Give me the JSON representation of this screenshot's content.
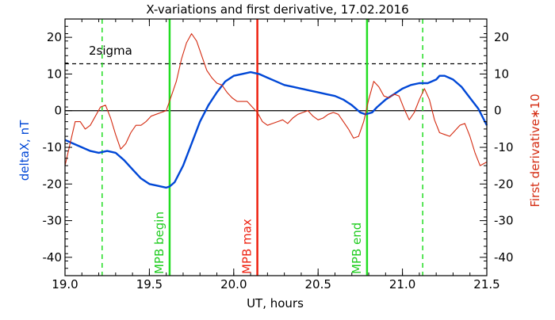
{
  "chart_data": {
    "type": "line",
    "title": "X-variations and first derivative, 17.02.2016",
    "xlabel": "UT, hours",
    "ylabel_left": "deltaX, nT",
    "ylabel_right": "First derivative∗10",
    "xlim": [
      19.0,
      21.5
    ],
    "ylim": [
      -45,
      25
    ],
    "x_ticks": [
      "19.0",
      "19.5",
      "20.0",
      "20.5",
      "21.0",
      "21.5"
    ],
    "y_ticks": [
      "20",
      "10",
      "0",
      "-10",
      "-20",
      "-30",
      "-40"
    ],
    "colors": {
      "deltaX": "#0047d6",
      "derivative": "#d42a10",
      "mpb_edges": "#22dd22",
      "mpb_max": "#ee2211",
      "reference": "#000000"
    },
    "sigma_label": "2sigma",
    "sigma_level": 12.8,
    "zero_line": 0,
    "dashed_green_x": [
      19.22,
      21.12
    ],
    "markers": [
      {
        "label": "MPB begin",
        "x": 19.62,
        "color": "#22dd22"
      },
      {
        "label": "MPB max",
        "x": 20.14,
        "color": "#ee2211"
      },
      {
        "label": "MPB end",
        "x": 20.79,
        "color": "#22dd22"
      }
    ],
    "series": [
      {
        "key": "deltaX",
        "color": "#0047d6",
        "x": [
          19.0,
          19.05,
          19.1,
          19.15,
          19.2,
          19.25,
          19.3,
          19.35,
          19.4,
          19.45,
          19.5,
          19.55,
          19.6,
          19.62,
          19.65,
          19.7,
          19.75,
          19.8,
          19.85,
          19.9,
          19.95,
          20.0,
          20.05,
          20.1,
          20.15,
          20.2,
          20.25,
          20.3,
          20.35,
          20.4,
          20.45,
          20.5,
          20.55,
          20.6,
          20.65,
          20.7,
          20.75,
          20.78,
          20.82,
          20.85,
          20.9,
          20.95,
          21.0,
          21.05,
          21.1,
          21.15,
          21.2,
          21.22,
          21.25,
          21.3,
          21.35,
          21.4,
          21.45,
          21.5
        ],
        "y": [
          -8.0,
          -9.0,
          -10.0,
          -11.0,
          -11.5,
          -11.0,
          -11.5,
          -13.5,
          -16.0,
          -18.5,
          -20.0,
          -20.5,
          -21.0,
          -20.7,
          -19.5,
          -15.0,
          -9.0,
          -3.0,
          1.5,
          5.0,
          8.0,
          9.5,
          10.0,
          10.5,
          10.0,
          9.0,
          8.0,
          7.0,
          6.5,
          6.0,
          5.5,
          5.0,
          4.5,
          4.0,
          3.0,
          1.5,
          -0.5,
          -1.0,
          -0.5,
          1.0,
          3.0,
          4.5,
          6.0,
          7.0,
          7.5,
          7.5,
          8.5,
          9.5,
          9.5,
          8.5,
          6.5,
          3.5,
          0.5,
          -4.0
        ]
      },
      {
        "key": "derivative",
        "color": "#d42a10",
        "x": [
          19.0,
          19.03,
          19.06,
          19.09,
          19.12,
          19.15,
          19.18,
          19.21,
          19.24,
          19.27,
          19.3,
          19.33,
          19.36,
          19.39,
          19.42,
          19.45,
          19.48,
          19.51,
          19.54,
          19.57,
          19.6,
          19.63,
          19.66,
          19.69,
          19.72,
          19.75,
          19.78,
          19.81,
          19.84,
          19.87,
          19.9,
          19.93,
          19.96,
          19.99,
          20.02,
          20.05,
          20.08,
          20.11,
          20.14,
          20.17,
          20.2,
          20.23,
          20.26,
          20.29,
          20.32,
          20.35,
          20.38,
          20.41,
          20.44,
          20.47,
          20.5,
          20.53,
          20.56,
          20.59,
          20.62,
          20.65,
          20.68,
          20.71,
          20.74,
          20.77,
          20.8,
          20.83,
          20.86,
          20.89,
          20.92,
          20.95,
          20.98,
          21.01,
          21.04,
          21.07,
          21.1,
          21.13,
          21.16,
          21.19,
          21.22,
          21.25,
          21.28,
          21.31,
          21.34,
          21.37,
          21.4,
          21.43,
          21.46,
          21.5
        ],
        "y": [
          -15.0,
          -9.0,
          -3.0,
          -3.0,
          -5.0,
          -4.0,
          -1.5,
          1.0,
          1.5,
          -2.0,
          -6.5,
          -10.5,
          -9.0,
          -6.0,
          -4.0,
          -4.0,
          -3.0,
          -1.5,
          -1.0,
          -0.5,
          0.0,
          4.0,
          8.0,
          14.0,
          18.5,
          21.0,
          19.0,
          15.0,
          11.0,
          9.0,
          7.5,
          7.0,
          5.0,
          3.5,
          2.5,
          2.5,
          2.5,
          1.0,
          -0.5,
          -3.0,
          -4.0,
          -3.5,
          -3.0,
          -2.5,
          -3.5,
          -2.0,
          -1.0,
          -0.5,
          0.0,
          -1.5,
          -2.5,
          -2.0,
          -1.0,
          -0.5,
          -1.0,
          -3.0,
          -5.0,
          -7.5,
          -7.0,
          -3.0,
          3.0,
          8.0,
          6.5,
          4.0,
          3.5,
          4.5,
          4.0,
          0.5,
          -2.5,
          -0.5,
          3.0,
          6.0,
          3.0,
          -2.5,
          -6.0,
          -6.5,
          -7.0,
          -5.5,
          -4.0,
          -3.5,
          -7.0,
          -11.5,
          -15.0,
          -14.0
        ]
      }
    ]
  }
}
